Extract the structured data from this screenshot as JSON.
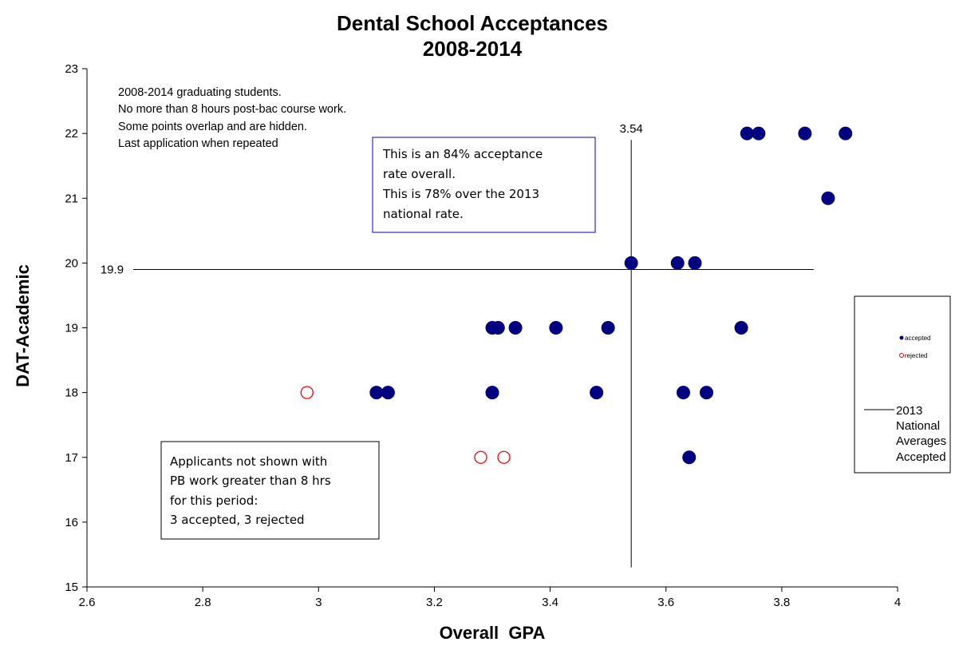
{
  "chart_data": {
    "type": "scatter",
    "title": [
      "Dental School Acceptances",
      "2008-2014"
    ],
    "xlabel": "Overall  GPA",
    "ylabel": "DAT-Academic",
    "xlim": [
      2.6,
      4.0
    ],
    "ylim": [
      15,
      23
    ],
    "xticks": [
      2.6,
      2.8,
      3.0,
      3.2,
      3.4,
      3.6,
      3.8,
      4.0
    ],
    "xtick_labels": [
      "2.6",
      "2.8",
      "3",
      "3.2",
      "3.4",
      "3.6",
      "3.8",
      "4"
    ],
    "yticks": [
      15,
      16,
      17,
      18,
      19,
      20,
      21,
      22,
      23
    ],
    "ytick_labels": [
      "15",
      "16",
      "17",
      "18",
      "19",
      "20",
      "21",
      "22",
      "23"
    ],
    "grid": false,
    "series": [
      {
        "name": "accepted",
        "color": "#000080",
        "marker": "filled-circle",
        "points": [
          [
            3.74,
            22
          ],
          [
            3.76,
            22
          ],
          [
            3.84,
            22
          ],
          [
            3.91,
            22
          ],
          [
            3.88,
            21
          ],
          [
            3.54,
            20
          ],
          [
            3.62,
            20
          ],
          [
            3.65,
            20
          ],
          [
            3.3,
            19
          ],
          [
            3.31,
            19
          ],
          [
            3.34,
            19
          ],
          [
            3.41,
            19
          ],
          [
            3.5,
            19
          ],
          [
            3.73,
            19
          ],
          [
            3.1,
            18
          ],
          [
            3.12,
            18
          ],
          [
            3.3,
            18
          ],
          [
            3.48,
            18
          ],
          [
            3.63,
            18
          ],
          [
            3.67,
            18
          ],
          [
            3.64,
            17
          ]
        ]
      },
      {
        "name": "rejected",
        "color": "#ff0000",
        "marker": "hollow-circle",
        "points": [
          [
            2.98,
            18
          ],
          [
            3.28,
            17
          ],
          [
            3.32,
            17
          ]
        ]
      }
    ],
    "reference_lines": {
      "name": "2013 National Averages Accepted",
      "vertical": {
        "x": 3.54,
        "label": "3.54",
        "y_from": 15.3,
        "y_to": 21.9
      },
      "horizontal": {
        "y": 19.9,
        "label": "19.9",
        "x_from": 2.68,
        "x_to": 3.855
      }
    },
    "notes": [
      "2008-2014 graduating students.",
      "No more than 8 hours post-bac course work.",
      "Some points overlap and are hidden.",
      "Last application when repeated"
    ],
    "annotations": [
      {
        "id": "acceptance-box",
        "lines": [
          "This is an 84% acceptance",
          "rate overall.",
          "This is 78% over the 2013",
          "national rate."
        ],
        "border_color": "#0000cc"
      },
      {
        "id": "not-shown-box",
        "lines": [
          "Applicants not shown with",
          "PB work greater than 8 hrs",
          "for this period:",
          "3 accepted, 3 rejected"
        ],
        "border_color": "#000000"
      }
    ],
    "legend": {
      "placement": "right",
      "entries": [
        {
          "label": "accepted",
          "marker": "filled-circle",
          "color": "#000080"
        },
        {
          "label": "rejected",
          "marker": "hollow-circle",
          "color": "#ff0000"
        }
      ],
      "line_entry": {
        "lines": [
          "2013",
          "National",
          "Averages",
          "Accepted"
        ]
      }
    }
  }
}
